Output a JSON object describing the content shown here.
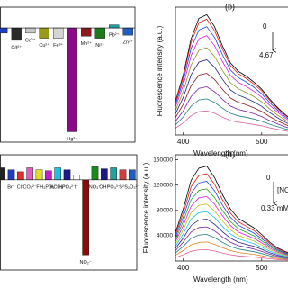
{
  "chart_data": [
    {
      "type": "bar",
      "categories": [
        null,
        "Cd²⁺",
        "Co²⁺",
        "Cu²⁺",
        "Fe³⁺",
        "Hg²⁺",
        "Mn²⁺",
        "Ni²⁺",
        "Pb²⁺",
        "Zn²⁺"
      ],
      "values": [
        -0.05,
        -0.12,
        -0.05,
        -0.1,
        -0.1,
        -1.0,
        -0.08,
        -0.1,
        0.03,
        -0.07
      ],
      "colors": [
        "#1f3fbf",
        "#2a2a2a",
        "#c8c8c8",
        "#9a9a1a",
        "#d4d4d4",
        "#8b0a8b",
        "#8b1a1a",
        "#1a7a1a",
        "#20a0a0",
        "#1f5fbf"
      ],
      "ylim": [
        -1.1,
        0.2
      ]
    },
    {
      "type": "line",
      "panel_label": "(b)",
      "xlabel": "Wavelength (nm)",
      "ylabel": "Fluorescence intensity (a.u.)",
      "annotations": [
        "0",
        "4.67"
      ],
      "x": [
        390,
        400,
        410,
        420,
        430,
        440,
        450,
        460,
        470,
        480,
        490,
        500,
        510,
        520,
        530,
        540
      ],
      "xlim": [
        390,
        545
      ],
      "xticks": [
        400,
        500
      ],
      "ylim": [
        0,
        85000
      ],
      "series": [
        {
          "color": "#000000",
          "values": [
            22400,
            40000,
            64000,
            77600,
            80000,
            72000,
            59200,
            48000,
            42400,
            39200,
            35200,
            30400,
            24000,
            18400,
            13600,
            9600
          ]
        },
        {
          "color": "#e02020",
          "values": [
            21600,
            38500,
            61600,
            74700,
            77000,
            69300,
            57000,
            46200,
            40800,
            37700,
            33900,
            29300,
            23100,
            17700,
            13100,
            9200
          ]
        },
        {
          "color": "#2040e0",
          "values": [
            20200,
            36000,
            57600,
            69800,
            72000,
            64800,
            53300,
            43200,
            38200,
            35300,
            31700,
            27400,
            21600,
            16600,
            12200,
            8600
          ]
        },
        {
          "color": "#e020e0",
          "values": [
            18500,
            33000,
            52800,
            64000,
            66000,
            59400,
            48800,
            39600,
            35000,
            32300,
            29000,
            25100,
            19800,
            15200,
            11200,
            7900
          ]
        },
        {
          "color": "#909020",
          "values": [
            16200,
            29000,
            46400,
            56300,
            58000,
            52200,
            42900,
            34800,
            30700,
            28400,
            25500,
            22000,
            17400,
            13300,
            9900,
            7000
          ]
        },
        {
          "color": "#20208a",
          "values": [
            14000,
            25000,
            40000,
            48500,
            50000,
            45000,
            37000,
            30000,
            26500,
            24500,
            22000,
            19000,
            15000,
            11500,
            8500,
            6000
          ]
        },
        {
          "color": "#8a1a1a",
          "values": [
            11500,
            20500,
            32800,
            39800,
            41000,
            36900,
            30300,
            24600,
            21700,
            20100,
            18000,
            15600,
            12300,
            9400,
            7000,
            4900
          ]
        },
        {
          "color": "#7a20a0",
          "values": [
            9000,
            16000,
            25600,
            31000,
            32000,
            28800,
            23700,
            19200,
            17000,
            15700,
            14100,
            12200,
            9600,
            7400,
            5400,
            3800
          ]
        },
        {
          "color": "#208080",
          "values": [
            6700,
            12000,
            19200,
            23300,
            24000,
            21600,
            17800,
            14400,
            12700,
            11800,
            10600,
            9100,
            7200,
            5500,
            4100,
            2900
          ]
        },
        {
          "color": "#e060a0",
          "values": [
            4500,
            8000,
            12800,
            15500,
            16000,
            14400,
            11800,
            9600,
            8500,
            7800,
            7000,
            6100,
            4800,
            3700,
            2700,
            1900
          ]
        }
      ]
    },
    {
      "type": "bar",
      "categories": [
        null,
        "Br⁻",
        "Cl⁻",
        "CO₃²⁻",
        "F⁻",
        "H₂PO₄⁻",
        "HCO₃⁻",
        "HPO₄²⁻",
        "I⁻",
        "NO₂⁻",
        "NO₃⁻",
        "OH⁻",
        "PO₄³⁻",
        "S²⁻",
        "S₂O₃²⁻"
      ],
      "values": [
        0.12,
        0.1,
        0.08,
        0.12,
        0.1,
        0.09,
        0.12,
        0.1,
        0.05,
        -0.75,
        0.13,
        0.11,
        0.12,
        0.1,
        0.1
      ],
      "colors": [
        "#222222",
        "#1f3fbf",
        "#e03030",
        "#e060c0",
        "#e0e020",
        "#c020c0",
        "#20c0e0",
        "#1a1a8a",
        "#ffffff",
        "#8b0a0a",
        "#1a8a1a",
        "#1a1a8a",
        "#20a0a0",
        "#d04040",
        "#2060c0"
      ],
      "ylim": [
        -0.9,
        0.25
      ]
    },
    {
      "type": "line",
      "panel_label": "(d)",
      "xlabel": "Wavelength (nm)",
      "ylabel": "Fluorescence intensity (a.u.)",
      "annotations": [
        "0",
        "[NO₂⁻]",
        "0.33 mM"
      ],
      "x": [
        390,
        400,
        410,
        420,
        430,
        440,
        450,
        460,
        470,
        480,
        490,
        500,
        510,
        520,
        530,
        540
      ],
      "xlim": [
        390,
        545
      ],
      "xticks": [
        400,
        500
      ],
      "ylim": [
        0,
        168000
      ],
      "yticks": [
        40000,
        80000,
        120000,
        160000
      ],
      "series": [
        {
          "color": "#000000",
          "values": [
            45000,
            82500,
            127500,
            147000,
            150000,
            132000,
            105000,
            82500,
            67500,
            60000,
            52500,
            42000,
            30000,
            21000,
            15000,
            10500
          ]
        },
        {
          "color": "#e02020",
          "values": [
            41400,
            75900,
            117300,
            135200,
            138000,
            121400,
            96600,
            75900,
            62100,
            55200,
            48300,
            38600,
            27600,
            19300,
            13800,
            9700
          ]
        },
        {
          "color": "#2040e0",
          "values": [
            37800,
            69300,
            107100,
            123500,
            126000,
            110900,
            88200,
            69300,
            56700,
            50400,
            44100,
            35300,
            25200,
            17600,
            12600,
            8800
          ]
        },
        {
          "color": "#20a020",
          "values": [
            34200,
            62700,
            96900,
            111700,
            114000,
            100300,
            79800,
            62700,
            51300,
            45600,
            39900,
            31900,
            22800,
            16000,
            11400,
            8000
          ]
        },
        {
          "color": "#e020e0",
          "values": [
            30600,
            56100,
            86700,
            100000,
            102000,
            89800,
            71400,
            56100,
            45900,
            40800,
            35700,
            28600,
            20400,
            14300,
            10200,
            7100
          ]
        },
        {
          "color": "#c0c020",
          "values": [
            27000,
            49500,
            76500,
            88200,
            90000,
            79200,
            63000,
            49500,
            40500,
            36000,
            31500,
            25200,
            18000,
            12600,
            9000,
            6300
          ]
        },
        {
          "color": "#20c0e0",
          "values": [
            23400,
            42900,
            66300,
            76400,
            78000,
            68600,
            54600,
            42900,
            35100,
            31200,
            27300,
            21800,
            15600,
            10900,
            7800,
            5500
          ]
        },
        {
          "color": "#20208a",
          "values": [
            19800,
            36300,
            56100,
            64700,
            66000,
            58100,
            46200,
            36300,
            29700,
            26400,
            23100,
            18500,
            13200,
            9200,
            6600,
            4600
          ]
        },
        {
          "color": "#7a20a0",
          "values": [
            16200,
            29700,
            45900,
            52900,
            54000,
            47500,
            37800,
            29700,
            24300,
            21600,
            18900,
            15100,
            10800,
            7600,
            5400,
            3800
          ]
        },
        {
          "color": "#208080",
          "values": [
            12600,
            23100,
            35700,
            41200,
            42000,
            37000,
            29400,
            23100,
            18900,
            16800,
            14700,
            11800,
            8400,
            5900,
            4200,
            2900
          ]
        },
        {
          "color": "#e08020",
          "values": [
            9000,
            16500,
            25500,
            29400,
            30000,
            26400,
            21000,
            16500,
            13500,
            12000,
            10500,
            8400,
            6000,
            4200,
            3000,
            2100
          ]
        },
        {
          "color": "#e060a0",
          "values": [
            5400,
            9900,
            15300,
            17600,
            18000,
            15800,
            12600,
            9900,
            8100,
            7200,
            6300,
            5000,
            3600,
            2500,
            1800,
            1300
          ]
        }
      ]
    }
  ]
}
